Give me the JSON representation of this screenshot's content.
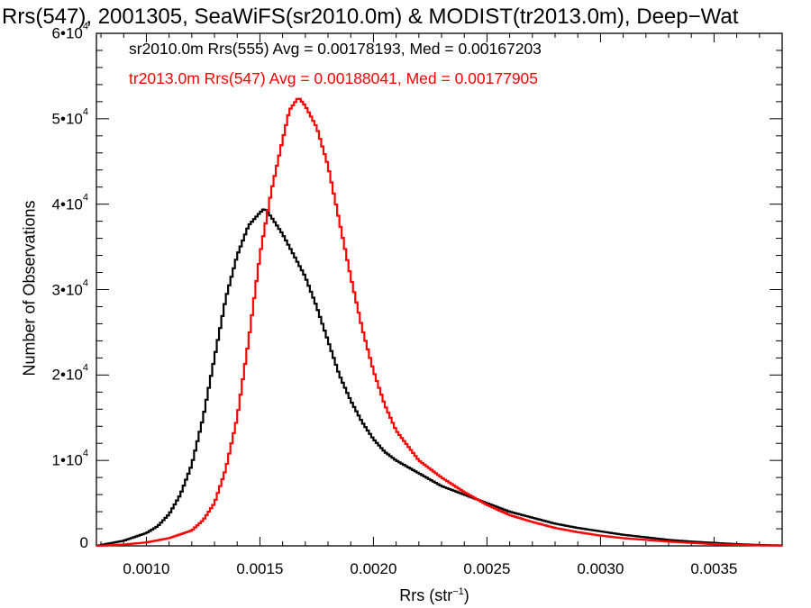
{
  "chart_data": {
    "type": "line",
    "title": "Rrs(547), 2001305, SeaWiFS(sr2010.0m) & MODIST(tr2013.0m), Deep−Wat",
    "xlabel_main": "Rrs (str",
    "xlabel_sup": "−1",
    "xlabel_tail": ")",
    "ylabel": "Number of Observations",
    "xlim": [
      0.00078,
      0.0038
    ],
    "ylim": [
      0,
      60000
    ],
    "x_ticks": [
      "0.0010",
      "0.0015",
      "0.0020",
      "0.0025",
      "0.0030",
      "0.0035"
    ],
    "x_tick_values": [
      0.001,
      0.0015,
      0.002,
      0.0025,
      0.003,
      0.0035
    ],
    "y_ticks": [
      {
        "value": 0,
        "base": "0",
        "exp": ""
      },
      {
        "value": 10000,
        "base": "1•10",
        "exp": "4"
      },
      {
        "value": 20000,
        "base": "2•10",
        "exp": "4"
      },
      {
        "value": 30000,
        "base": "3•10",
        "exp": "4"
      },
      {
        "value": 40000,
        "base": "4•10",
        "exp": "4"
      },
      {
        "value": 50000,
        "base": "5•10",
        "exp": "4"
      },
      {
        "value": 60000,
        "base": "6•10",
        "exp": "4"
      }
    ],
    "grid": false,
    "series": [
      {
        "name": "sr2010.0m Rrs(555) Avg = 0.00178193, Med = 0.00167203",
        "color": "#000000",
        "x": [
          0.00078,
          0.0009,
          0.001,
          0.00105,
          0.0011,
          0.00115,
          0.0012,
          0.00125,
          0.0013,
          0.00135,
          0.0014,
          0.00145,
          0.0015,
          0.00152,
          0.00155,
          0.0016,
          0.00165,
          0.0017,
          0.00175,
          0.0018,
          0.00185,
          0.0019,
          0.00195,
          0.002,
          0.00205,
          0.0021,
          0.0022,
          0.0023,
          0.0024,
          0.0025,
          0.0026,
          0.0027,
          0.0028,
          0.0029,
          0.003,
          0.0031,
          0.0032,
          0.0033,
          0.0034,
          0.0035,
          0.0036,
          0.0037,
          0.0038
        ],
        "y": [
          0,
          600,
          1500,
          2300,
          3700,
          6000,
          9500,
          15000,
          22000,
          29000,
          34000,
          37500,
          39000,
          39500,
          38500,
          36500,
          34000,
          31500,
          28000,
          24000,
          20000,
          17000,
          14500,
          12500,
          11000,
          10000,
          8500,
          7000,
          6000,
          5000,
          4000,
          3300,
          2600,
          2100,
          1700,
          1300,
          1000,
          700,
          500,
          350,
          200,
          100,
          50
        ]
      },
      {
        "name": "tr2013.0m Rrs(547) Avg = 0.00188041, Med = 0.00177905",
        "color": "#ff0000",
        "x": [
          0.00078,
          0.0009,
          0.001,
          0.0011,
          0.0012,
          0.00125,
          0.0013,
          0.00135,
          0.0014,
          0.00145,
          0.0015,
          0.00155,
          0.0016,
          0.00163,
          0.00167,
          0.0017,
          0.00175,
          0.0018,
          0.00185,
          0.0019,
          0.00195,
          0.002,
          0.00205,
          0.0021,
          0.0022,
          0.0023,
          0.0024,
          0.0025,
          0.0026,
          0.0027,
          0.0028,
          0.0029,
          0.003,
          0.0031,
          0.0032,
          0.0033,
          0.0034,
          0.0035,
          0.0036,
          0.0037,
          0.0038
        ],
        "y": [
          0,
          150,
          400,
          900,
          1800,
          3000,
          5000,
          9000,
          15000,
          24000,
          34000,
          41500,
          47500,
          51000,
          52500,
          51500,
          49000,
          44500,
          38000,
          31500,
          25500,
          20500,
          16500,
          13500,
          10000,
          8000,
          6300,
          4800,
          3600,
          2800,
          2100,
          1600,
          1200,
          900,
          700,
          500,
          350,
          200,
          120,
          60,
          30
        ]
      }
    ]
  }
}
